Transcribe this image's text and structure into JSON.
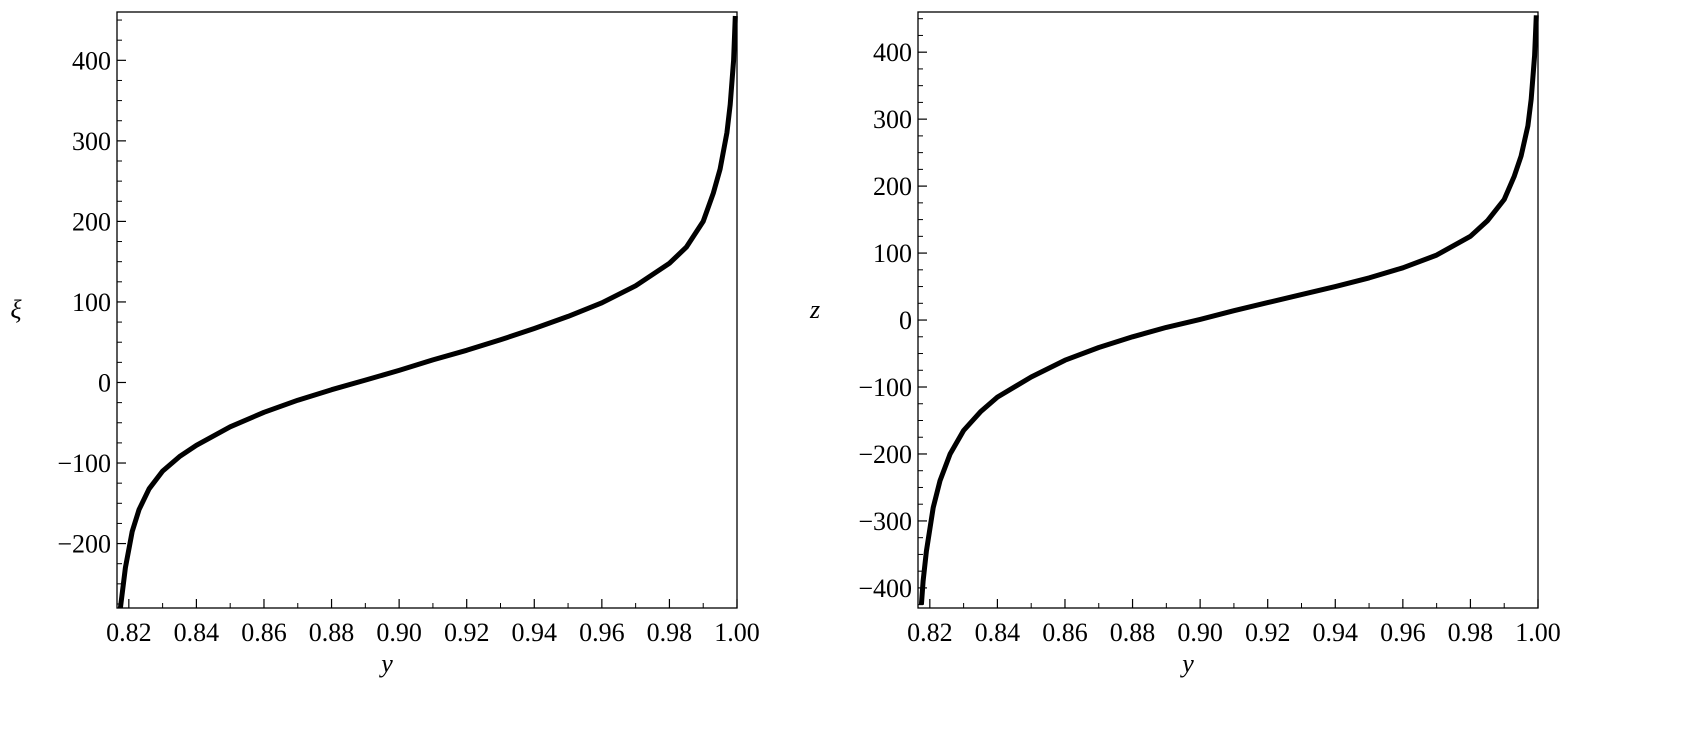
{
  "chart_data": [
    {
      "type": "line",
      "xlabel": "y",
      "ylabel": "ξ",
      "xlim": [
        0.8165,
        1.0
      ],
      "ylim": [
        -280,
        460
      ],
      "xticks": [
        0.82,
        0.84,
        0.86,
        0.88,
        0.9,
        0.92,
        0.94,
        0.96,
        0.98,
        1.0
      ],
      "xtick_labels": [
        "0.82",
        "0.84",
        "0.86",
        "0.88",
        "0.90",
        "0.92",
        "0.94",
        "0.96",
        "0.98",
        "1.00"
      ],
      "yticks": [
        -200,
        -100,
        0,
        100,
        200,
        300,
        400
      ],
      "ytick_labels": [
        "−200",
        "−100",
        "0",
        "100",
        "200",
        "300",
        "400"
      ],
      "grid": false,
      "series": [
        {
          "color": "#000000",
          "x": [
            0.8175,
            0.819,
            0.821,
            0.823,
            0.826,
            0.83,
            0.835,
            0.84,
            0.85,
            0.86,
            0.87,
            0.88,
            0.89,
            0.9,
            0.91,
            0.92,
            0.93,
            0.94,
            0.95,
            0.96,
            0.97,
            0.98,
            0.985,
            0.99,
            0.993,
            0.995,
            0.997,
            0.998,
            0.999,
            0.9995
          ],
          "y": [
            -280,
            -230,
            -185,
            -158,
            -132,
            -110,
            -92,
            -78,
            -55,
            -37,
            -22,
            -9,
            3,
            15,
            28,
            40,
            53,
            67,
            82,
            99,
            120,
            148,
            168,
            200,
            235,
            265,
            310,
            345,
            400,
            455
          ]
        }
      ]
    },
    {
      "type": "line",
      "xlabel": "y",
      "ylabel": "z",
      "xlim": [
        0.8165,
        1.0
      ],
      "ylim": [
        -430,
        460
      ],
      "xticks": [
        0.82,
        0.84,
        0.86,
        0.88,
        0.9,
        0.92,
        0.94,
        0.96,
        0.98,
        1.0
      ],
      "xtick_labels": [
        "0.82",
        "0.84",
        "0.86",
        "0.88",
        "0.90",
        "0.92",
        "0.94",
        "0.96",
        "0.98",
        "1.00"
      ],
      "yticks": [
        -400,
        -300,
        -200,
        -100,
        0,
        100,
        200,
        300,
        400
      ],
      "ytick_labels": [
        "−400",
        "−300",
        "−200",
        "−100",
        "0",
        "100",
        "200",
        "300",
        "400"
      ],
      "grid": false,
      "series": [
        {
          "color": "#000000",
          "x": [
            0.8175,
            0.818,
            0.819,
            0.821,
            0.823,
            0.826,
            0.83,
            0.835,
            0.84,
            0.85,
            0.86,
            0.87,
            0.88,
            0.89,
            0.9,
            0.91,
            0.92,
            0.93,
            0.94,
            0.95,
            0.96,
            0.97,
            0.98,
            0.985,
            0.99,
            0.993,
            0.995,
            0.997,
            0.998,
            0.999,
            0.9995
          ],
          "y": [
            -425,
            -390,
            -345,
            -280,
            -240,
            -200,
            -165,
            -137,
            -115,
            -85,
            -60,
            -41,
            -25,
            -11,
            1,
            14,
            26,
            38,
            50,
            63,
            78,
            97,
            125,
            148,
            180,
            215,
            245,
            290,
            330,
            395,
            455
          ]
        }
      ]
    }
  ]
}
